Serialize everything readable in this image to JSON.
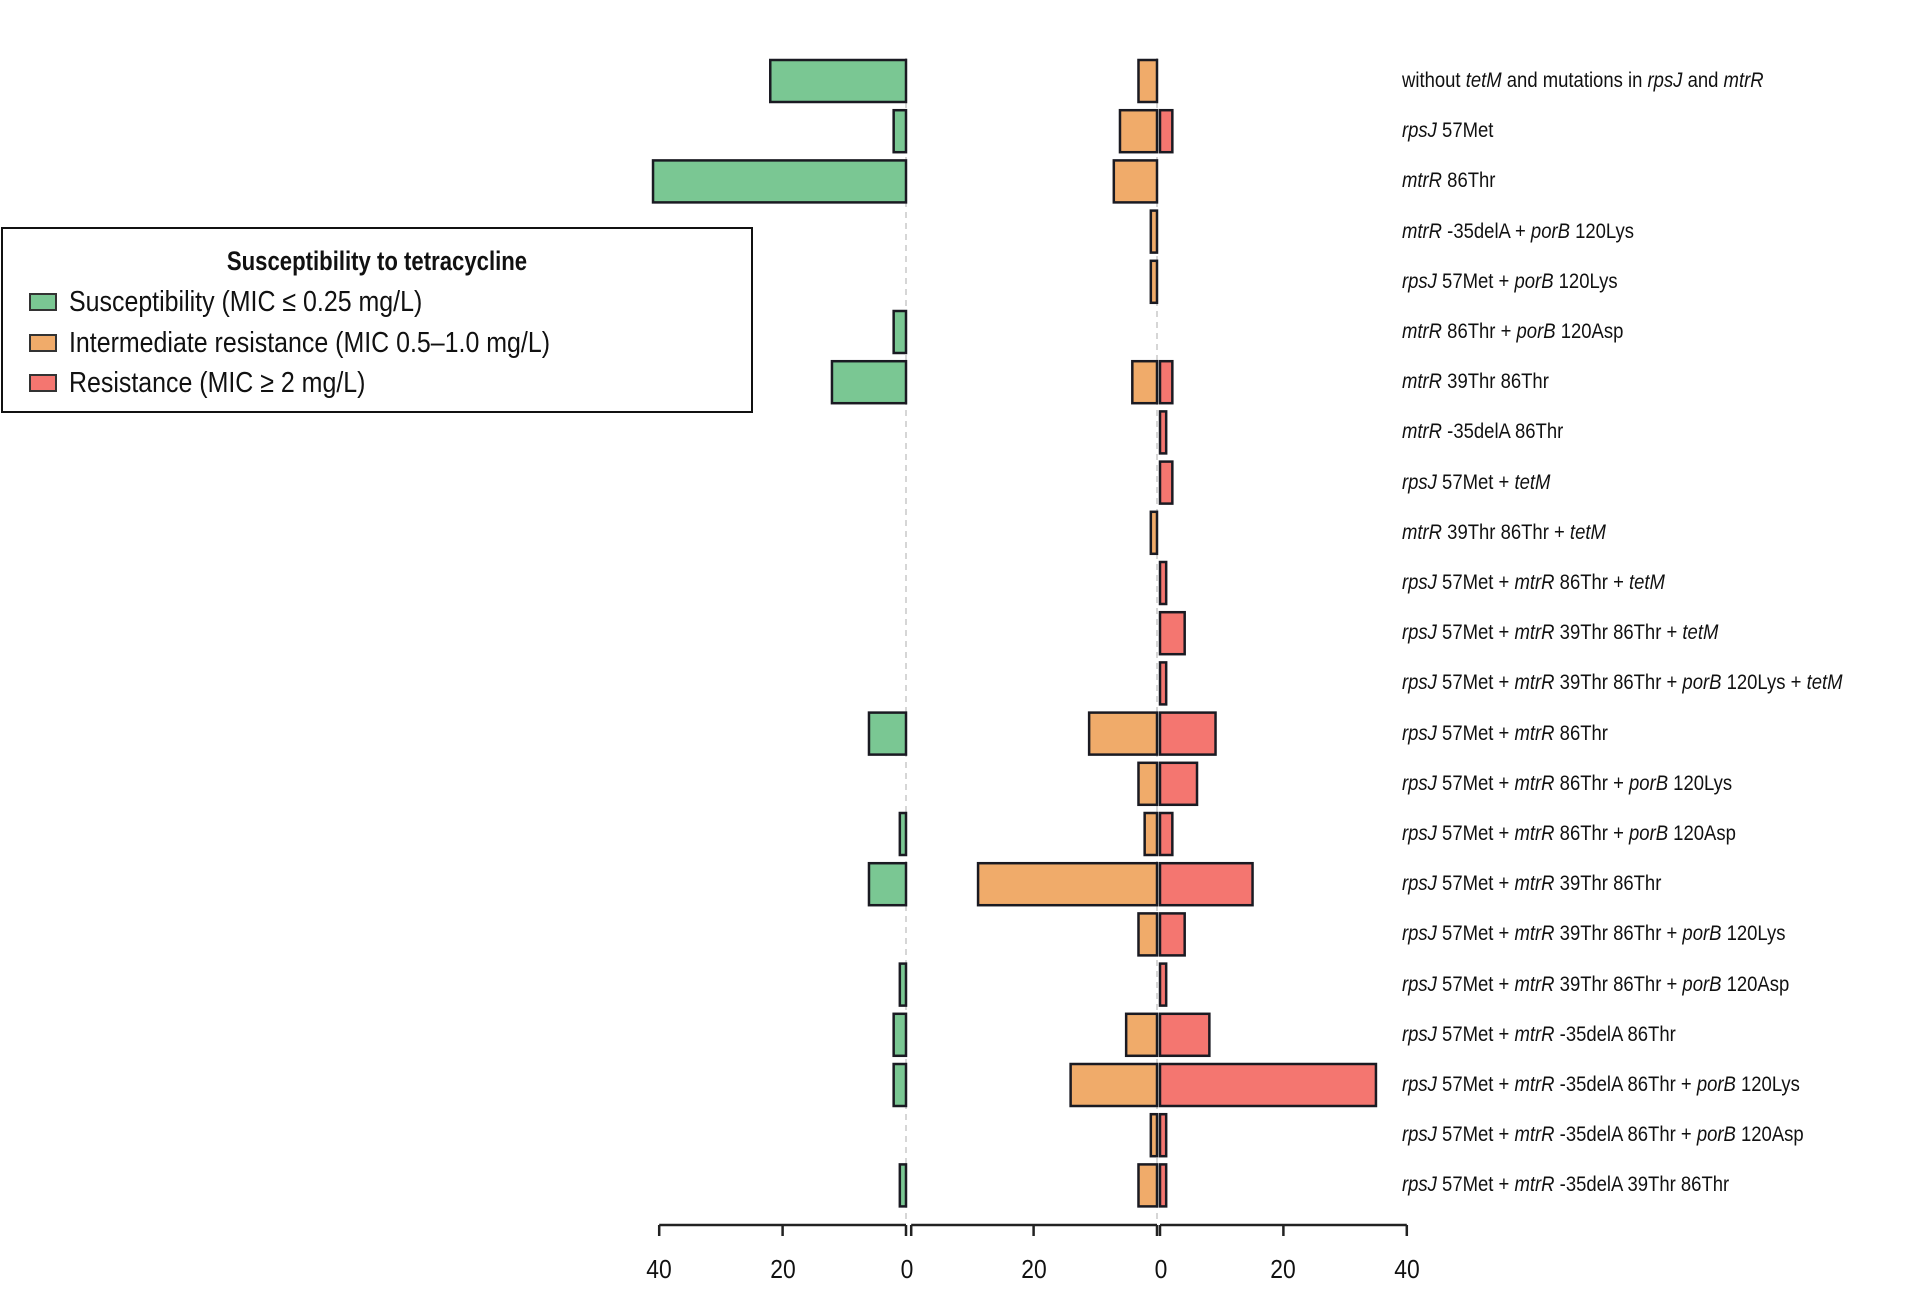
{
  "chart_data": {
    "type": "bar",
    "orientation": "horizontal",
    "layout": "three mirrored panels (back-to-back)",
    "title": "",
    "legend": {
      "title": "Susceptibility to tetracycline",
      "placement": "upper-left",
      "entries": [
        {
          "name": "Susceptibility (MIC ≤ 0.25 mg/L)",
          "color": "#7ac793"
        },
        {
          "name": "Intermediate resistance (MIC 0.5–1.0 mg/L)",
          "color": "#f0ab6a"
        },
        {
          "name": "Resistance (MIC ≥ 2 mg/L)",
          "color": "#f47670"
        }
      ]
    },
    "categories": [
      [
        {
          "t": "without ",
          "i": false
        },
        {
          "t": "tetM",
          "i": true
        },
        {
          "t": " and mutations in ",
          "i": false
        },
        {
          "t": "rpsJ",
          "i": true
        },
        {
          "t": " and ",
          "i": false
        },
        {
          "t": "mtrR",
          "i": true
        }
      ],
      [
        {
          "t": "rpsJ",
          "i": true
        },
        {
          "t": " 57Met",
          "i": false
        }
      ],
      [
        {
          "t": "mtrR",
          "i": true
        },
        {
          "t": " 86Thr",
          "i": false
        }
      ],
      [
        {
          "t": "mtrR",
          "i": true
        },
        {
          "t": " -35delA + ",
          "i": false
        },
        {
          "t": "porB",
          "i": true
        },
        {
          "t": " 120Lys",
          "i": false
        }
      ],
      [
        {
          "t": "rpsJ",
          "i": true
        },
        {
          "t": " 57Met + ",
          "i": false
        },
        {
          "t": "porB",
          "i": true
        },
        {
          "t": " 120Lys",
          "i": false
        }
      ],
      [
        {
          "t": "mtrR",
          "i": true
        },
        {
          "t": " 86Thr + ",
          "i": false
        },
        {
          "t": "porB",
          "i": true
        },
        {
          "t": " 120Asp",
          "i": false
        }
      ],
      [
        {
          "t": "mtrR",
          "i": true
        },
        {
          "t": " 39Thr 86Thr",
          "i": false
        }
      ],
      [
        {
          "t": "mtrR",
          "i": true
        },
        {
          "t": " -35delA 86Thr",
          "i": false
        }
      ],
      [
        {
          "t": "rpsJ",
          "i": true
        },
        {
          "t": " 57Met + ",
          "i": false
        },
        {
          "t": "tetM",
          "i": true
        }
      ],
      [
        {
          "t": "mtrR",
          "i": true
        },
        {
          "t": " 39Thr 86Thr + ",
          "i": false
        },
        {
          "t": "tetM",
          "i": true
        }
      ],
      [
        {
          "t": "rpsJ",
          "i": true
        },
        {
          "t": " 57Met + ",
          "i": false
        },
        {
          "t": "mtrR",
          "i": true
        },
        {
          "t": " 86Thr + ",
          "i": false
        },
        {
          "t": "tetM",
          "i": true
        }
      ],
      [
        {
          "t": "rpsJ",
          "i": true
        },
        {
          "t": " 57Met + ",
          "i": false
        },
        {
          "t": "mtrR",
          "i": true
        },
        {
          "t": " 39Thr 86Thr + ",
          "i": false
        },
        {
          "t": "tetM",
          "i": true
        }
      ],
      [
        {
          "t": "rpsJ",
          "i": true
        },
        {
          "t": " 57Met + ",
          "i": false
        },
        {
          "t": "mtrR",
          "i": true
        },
        {
          "t": " 39Thr 86Thr + ",
          "i": false
        },
        {
          "t": "porB",
          "i": true
        },
        {
          "t": " 120Lys + ",
          "i": false
        },
        {
          "t": "tetM",
          "i": true
        }
      ],
      [
        {
          "t": "rpsJ",
          "i": true
        },
        {
          "t": " 57Met + ",
          "i": false
        },
        {
          "t": "mtrR",
          "i": true
        },
        {
          "t": " 86Thr",
          "i": false
        }
      ],
      [
        {
          "t": "rpsJ",
          "i": true
        },
        {
          "t": " 57Met + ",
          "i": false
        },
        {
          "t": "mtrR",
          "i": true
        },
        {
          "t": " 86Thr + ",
          "i": false
        },
        {
          "t": "porB",
          "i": true
        },
        {
          "t": " 120Lys",
          "i": false
        }
      ],
      [
        {
          "t": "rpsJ",
          "i": true
        },
        {
          "t": " 57Met + ",
          "i": false
        },
        {
          "t": "mtrR",
          "i": true
        },
        {
          "t": " 86Thr + ",
          "i": false
        },
        {
          "t": "porB",
          "i": true
        },
        {
          "t": " 120Asp",
          "i": false
        }
      ],
      [
        {
          "t": "rpsJ",
          "i": true
        },
        {
          "t": " 57Met + ",
          "i": false
        },
        {
          "t": "mtrR",
          "i": true
        },
        {
          "t": " 39Thr 86Thr",
          "i": false
        }
      ],
      [
        {
          "t": "rpsJ",
          "i": true
        },
        {
          "t": " 57Met + ",
          "i": false
        },
        {
          "t": "mtrR",
          "i": true
        },
        {
          "t": " 39Thr 86Thr + ",
          "i": false
        },
        {
          "t": "porB",
          "i": true
        },
        {
          "t": " 120Lys",
          "i": false
        }
      ],
      [
        {
          "t": "rpsJ",
          "i": true
        },
        {
          "t": " 57Met + ",
          "i": false
        },
        {
          "t": "mtrR",
          "i": true
        },
        {
          "t": " 39Thr 86Thr + ",
          "i": false
        },
        {
          "t": "porB",
          "i": true
        },
        {
          "t": " 120Asp",
          "i": false
        }
      ],
      [
        {
          "t": "rpsJ",
          "i": true
        },
        {
          "t": " 57Met + ",
          "i": false
        },
        {
          "t": "mtrR",
          "i": true
        },
        {
          "t": " -35delA 86Thr",
          "i": false
        }
      ],
      [
        {
          "t": "rpsJ",
          "i": true
        },
        {
          "t": " 57Met + ",
          "i": false
        },
        {
          "t": "mtrR",
          "i": true
        },
        {
          "t": " -35delA 86Thr + ",
          "i": false
        },
        {
          "t": "porB",
          "i": true
        },
        {
          "t": " 120Lys",
          "i": false
        }
      ],
      [
        {
          "t": "rpsJ",
          "i": true
        },
        {
          "t": " 57Met + ",
          "i": false
        },
        {
          "t": "mtrR",
          "i": true
        },
        {
          "t": " -35delA 86Thr + ",
          "i": false
        },
        {
          "t": "porB",
          "i": true
        },
        {
          "t": " 120Asp",
          "i": false
        }
      ],
      [
        {
          "t": "rpsJ",
          "i": true
        },
        {
          "t": " 57Met + ",
          "i": false
        },
        {
          "t": "mtrR",
          "i": true
        },
        {
          "t": " -35delA 39Thr 86Thr",
          "i": false
        }
      ]
    ],
    "series": [
      {
        "name": "Susceptibility (MIC ≤ 0.25 mg/L)",
        "panel": "left",
        "direction": "leftward",
        "values": [
          22,
          2,
          41,
          0,
          0,
          2,
          12,
          0,
          0,
          0,
          0,
          0,
          0,
          6,
          0,
          1,
          6,
          0,
          1,
          2,
          2,
          0,
          1
        ]
      },
      {
        "name": "Intermediate resistance (MIC 0.5–1.0 mg/L)",
        "panel": "middle",
        "direction": "leftward",
        "values": [
          3,
          6,
          7,
          1,
          1,
          0,
          4,
          0,
          0,
          1,
          0,
          0,
          0,
          11,
          3,
          2,
          29,
          3,
          0,
          5,
          14,
          1,
          3
        ]
      },
      {
        "name": "Resistance (MIC ≥ 2 mg/L)",
        "panel": "right",
        "direction": "rightward",
        "values": [
          0,
          2,
          0,
          0,
          0,
          0,
          2,
          1,
          2,
          0,
          1,
          4,
          1,
          9,
          6,
          2,
          15,
          4,
          1,
          8,
          35,
          1,
          1
        ]
      }
    ],
    "xaxis": {
      "tick_labels": [
        "40",
        "20",
        "0",
        "20",
        "0",
        "20",
        "40"
      ],
      "panels": [
        {
          "name": "left",
          "range": [
            40,
            0
          ]
        },
        {
          "name": "middle",
          "range": [
            40,
            0
          ]
        },
        {
          "name": "right",
          "range": [
            0,
            40
          ]
        }
      ]
    },
    "xlabel": "",
    "ylabel": "",
    "grid": false,
    "zero_lines": "dashed grey"
  }
}
